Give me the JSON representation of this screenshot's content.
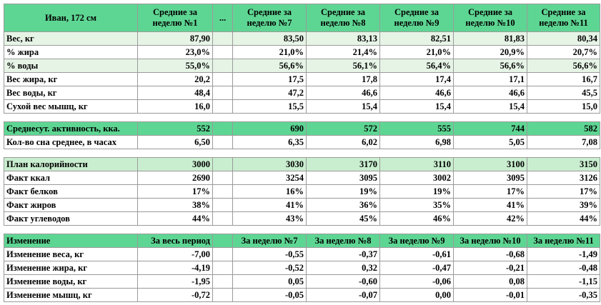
{
  "header": {
    "person": "Иван, 172 см",
    "columns": [
      "Средние за неделю №1",
      "...",
      "Средние за неделю №7",
      "Средние за неделю №8",
      "Средние за неделю №9",
      "Средние за неделю №10",
      "Средние за неделю №11"
    ]
  },
  "body": [
    {
      "label": "Вес, кг",
      "values": [
        "87,90",
        "",
        "83,50",
        "83,13",
        "82,51",
        "81,83",
        "80,34"
      ]
    },
    {
      "label": "% жира",
      "values": [
        "23,0%",
        "",
        "21,0%",
        "21,4%",
        "21,0%",
        "20,9%",
        "20,7%"
      ]
    },
    {
      "label": "% воды",
      "values": [
        "55,0%",
        "",
        "56,6%",
        "56,1%",
        "56,4%",
        "56,6%",
        "56,6%"
      ]
    },
    {
      "label": "Вес жира, кг",
      "values": [
        "20,2",
        "",
        "17,5",
        "17,8",
        "17,4",
        "17,1",
        "16,7"
      ]
    },
    {
      "label": "Вес воды, кг",
      "values": [
        "48,4",
        "",
        "47,2",
        "46,6",
        "46,6",
        "46,6",
        "45,5"
      ]
    },
    {
      "label": "Сухой вес мышц, кг",
      "values": [
        "16,0",
        "",
        "15,5",
        "15,4",
        "15,4",
        "15,4",
        "15,0"
      ]
    }
  ],
  "activity": [
    {
      "label": "Среднесут. активность, кка.",
      "values": [
        "552",
        "",
        "690",
        "572",
        "555",
        "744",
        "582"
      ]
    },
    {
      "label": "Кол-во сна среднее, в часах",
      "values": [
        "6,50",
        "",
        "6,35",
        "6,02",
        "6,98",
        "5,05",
        "7,08"
      ]
    }
  ],
  "nutrition": [
    {
      "label": "План калорийности",
      "values": [
        "3000",
        "",
        "3030",
        "3170",
        "3110",
        "3100",
        "3150"
      ]
    },
    {
      "label": "Факт ккал",
      "values": [
        "2690",
        "",
        "3254",
        "3095",
        "3002",
        "3095",
        "3126"
      ]
    },
    {
      "label": "Факт белков",
      "values": [
        "17%",
        "",
        "16%",
        "19%",
        "19%",
        "17%",
        "17%"
      ]
    },
    {
      "label": "Факт жиров",
      "values": [
        "38%",
        "",
        "41%",
        "36%",
        "35%",
        "41%",
        "39%"
      ]
    },
    {
      "label": "Факт углеводов",
      "values": [
        "44%",
        "",
        "43%",
        "45%",
        "46%",
        "42%",
        "44%"
      ]
    }
  ],
  "changes": {
    "header": [
      "Изменение",
      "За весь период",
      "",
      "За неделю №7",
      "За неделю №8",
      "За неделю №9",
      "За неделю №10",
      "За неделю №11"
    ],
    "rows": [
      {
        "label": "Изменение веса, кг",
        "values": [
          "-7,00",
          "",
          "-0,55",
          "-0,37",
          "-0,61",
          "-0,68",
          "-1,49"
        ]
      },
      {
        "label": "Изменение жира, кг",
        "values": [
          "-4,19",
          "",
          "-0,52",
          "0,32",
          "-0,47",
          "-0,21",
          "-0,48"
        ]
      },
      {
        "label": "Изменение воды, кг",
        "values": [
          "-1,95",
          "",
          "0,05",
          "-0,60",
          "-0,06",
          "0,08",
          "-1,15"
        ]
      },
      {
        "label": "Изменение мышц, кг",
        "values": [
          "-0,72",
          "",
          "-0,05",
          "-0,07",
          "0,00",
          "-0,01",
          "-0,35"
        ]
      }
    ]
  }
}
